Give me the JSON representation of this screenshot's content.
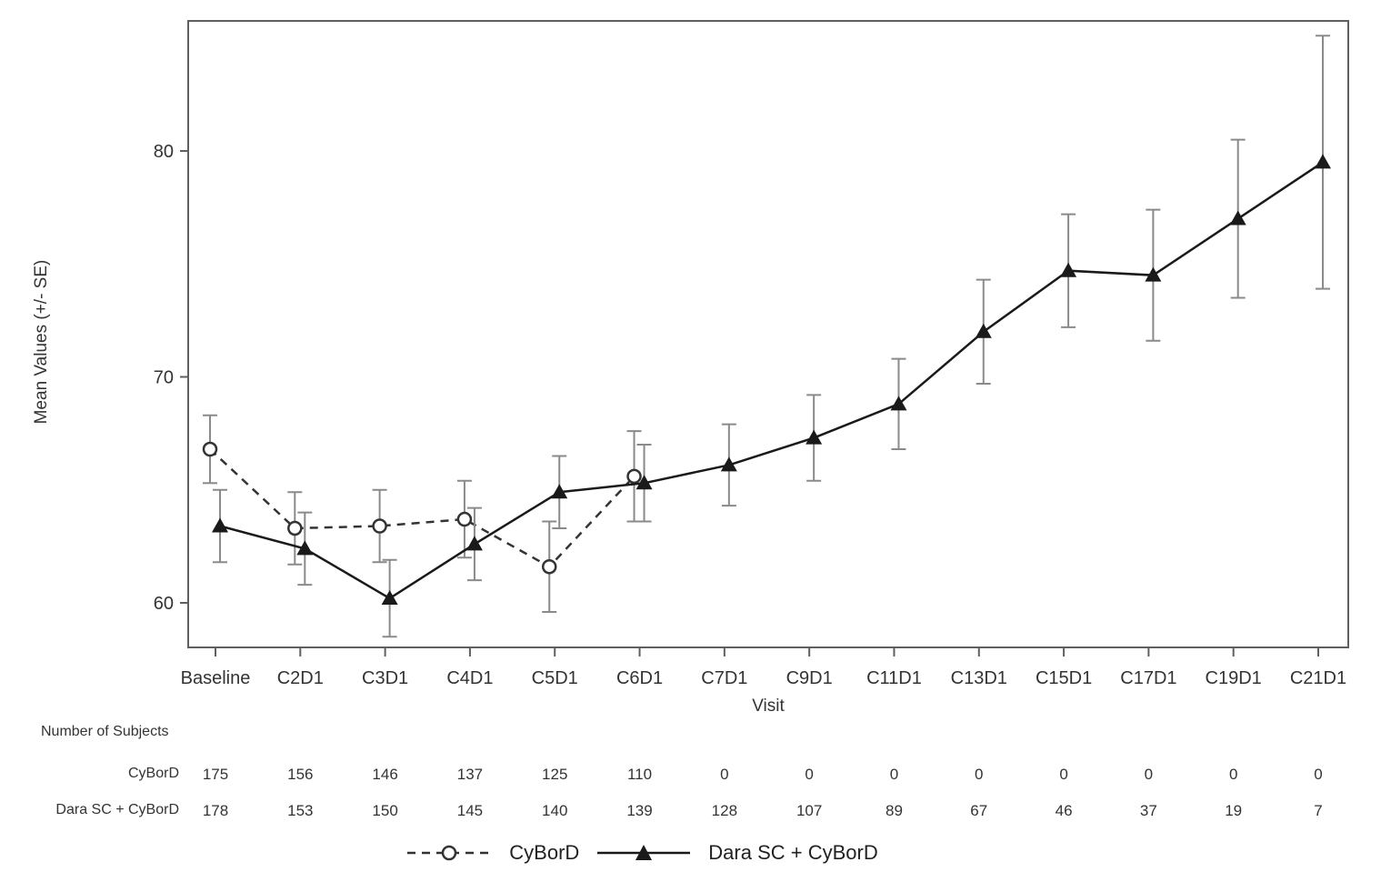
{
  "figure": {
    "y_axis_label": "Mean Values (+/- SE)",
    "x_axis_label": "Visit",
    "subjects_header": "Number of Subjects",
    "subjects_rows": [
      {
        "label": "CyBorD",
        "counts": [
          175,
          156,
          146,
          137,
          125,
          110,
          0,
          0,
          0,
          0,
          0,
          0,
          0,
          0
        ]
      },
      {
        "label": "Dara SC + CyBorD",
        "counts": [
          178,
          153,
          150,
          145,
          140,
          139,
          128,
          107,
          89,
          67,
          46,
          37,
          19,
          7
        ]
      }
    ],
    "legend": [
      {
        "label": "CyBorD",
        "marker": "open-circle",
        "line": "dashed"
      },
      {
        "label": "Dara SC + CyBorD",
        "marker": "filled-triangle",
        "line": "solid"
      }
    ]
  },
  "chart_data": {
    "type": "line",
    "title": "",
    "xlabel": "Visit",
    "ylabel": "Mean Values (+/- SE)",
    "categories": [
      "Baseline",
      "C2D1",
      "C3D1",
      "C4D1",
      "C5D1",
      "C6D1",
      "C7D1",
      "C9D1",
      "C11D1",
      "C13D1",
      "C15D1",
      "C17D1",
      "C19D1",
      "C21D1"
    ],
    "ylim": [
      58,
      86
    ],
    "yticks": [
      60,
      70,
      80
    ],
    "grid": false,
    "error_bars": "+/- SE",
    "legend_position": "bottom",
    "series": [
      {
        "name": "CyBorD",
        "line": "dashed",
        "marker": "open-circle",
        "color": "#333333",
        "values": [
          66.8,
          63.3,
          63.4,
          63.7,
          61.6,
          65.6,
          null,
          null,
          null,
          null,
          null,
          null,
          null,
          null
        ],
        "se": [
          1.5,
          1.6,
          1.6,
          1.7,
          2.0,
          2.0,
          null,
          null,
          null,
          null,
          null,
          null,
          null,
          null
        ]
      },
      {
        "name": "Dara SC + CyBorD",
        "line": "solid",
        "marker": "filled-triangle",
        "color": "#1a1a1a",
        "values": [
          63.4,
          62.4,
          60.2,
          62.6,
          64.9,
          65.3,
          66.1,
          67.3,
          68.8,
          72.0,
          74.7,
          74.5,
          77.0,
          79.5
        ],
        "se": [
          1.6,
          1.6,
          1.7,
          1.6,
          1.6,
          1.7,
          1.8,
          1.9,
          2.0,
          2.3,
          2.5,
          2.9,
          3.5,
          5.6
        ]
      }
    ],
    "colors": {
      "line": "#2a2a2a",
      "error_bar": "#8a8a8a",
      "text": "#333333",
      "frame": "#5f5f5f",
      "background": "#ffffff"
    }
  }
}
